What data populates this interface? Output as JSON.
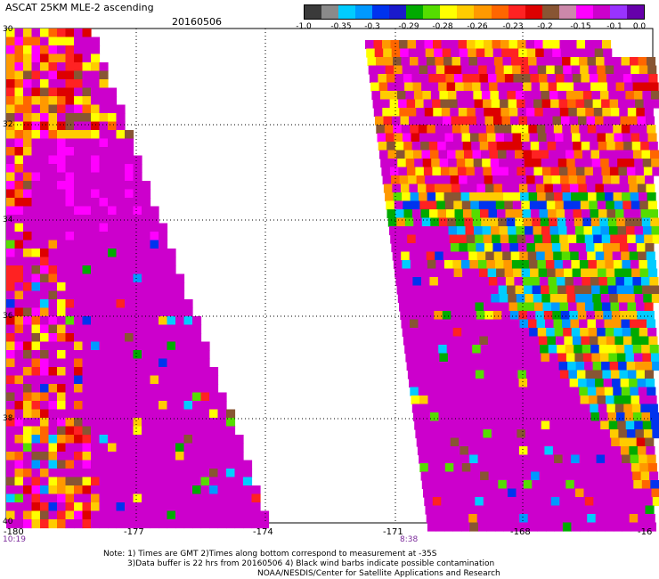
{
  "header": {
    "title": "ASCAT 25KM MLE-2 ascending",
    "date": "20160506"
  },
  "colorbar": {
    "colors": [
      "#3a3a3a",
      "#8a8a8a",
      "#00ccff",
      "#0099ff",
      "#0033ee",
      "#1a1acc",
      "#00aa00",
      "#55dd00",
      "#ffff00",
      "#ffcc00",
      "#ff9900",
      "#ff6600",
      "#ff2222",
      "#dd0000",
      "#885533",
      "#cc88aa",
      "#ff00ff",
      "#cc00cc",
      "#9933ff",
      "#6600aa"
    ],
    "labels": [
      "-1.0",
      "-0.35",
      "-0.3",
      "-0.29",
      "-0.28",
      "-0.26",
      "-0.23",
      "-0.2",
      "-0.15",
      "-0.1",
      "0.0"
    ]
  },
  "axes": {
    "lon_labels": [
      "-180",
      "-177",
      "-174",
      "-171",
      "-168",
      "-16"
    ],
    "lat_labels": [
      "30",
      "32",
      "34",
      "36",
      "38",
      "40"
    ]
  },
  "swaths": [
    {
      "time": "10:19"
    },
    {
      "time": "8:38"
    }
  ],
  "notes": {
    "line1": "Note: 1) Times are GMT 2)Times along bottom correspond to measurement at -35S",
    "line2": "3)Data buffer is 22 hrs from 20160506 4) Black wind barbs indicate possible contamination",
    "line3": "NOAA/NESDIS/Center for Satellite Applications and Research"
  }
}
